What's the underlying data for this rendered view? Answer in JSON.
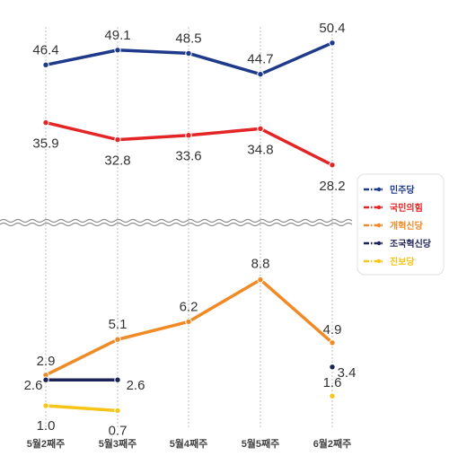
{
  "chart_data": {
    "type": "line",
    "categories": [
      "5월2째주",
      "5월3째주",
      "5월4째주",
      "5월5째주",
      "6월2째주"
    ],
    "axis_break": true,
    "grid": "vertical-dashed",
    "legend_placement": "right",
    "series": [
      {
        "name": "민주당",
        "color": "#1f3a8a",
        "values": [
          46.4,
          49.1,
          48.5,
          44.7,
          50.4
        ],
        "labels": [
          "46.4",
          "49.1",
          "48.5",
          "44.7",
          "50.4"
        ]
      },
      {
        "name": "국민의힘",
        "color": "#e32526",
        "values": [
          35.9,
          32.8,
          33.6,
          34.8,
          28.2
        ],
        "labels": [
          "35.9",
          "32.8",
          "33.6",
          "34.8",
          "28.2"
        ]
      },
      {
        "name": "개혁신당",
        "color": "#f08a24",
        "values": [
          2.9,
          5.1,
          6.2,
          8.8,
          4.9
        ],
        "labels": [
          "2.9",
          "5.1",
          "6.2",
          "8.8",
          "4.9"
        ]
      },
      {
        "name": "조국혁신당",
        "color": "#1c2357",
        "values": [
          2.6,
          2.6,
          null,
          null,
          3.4
        ],
        "labels": [
          "2.6",
          "2.6",
          "",
          "",
          "3.4"
        ]
      },
      {
        "name": "진보당",
        "color": "#f7c418",
        "values": [
          1.0,
          0.7,
          null,
          null,
          1.6
        ],
        "labels": [
          "1.0",
          "0.7",
          "",
          "",
          "1.6"
        ]
      }
    ]
  }
}
